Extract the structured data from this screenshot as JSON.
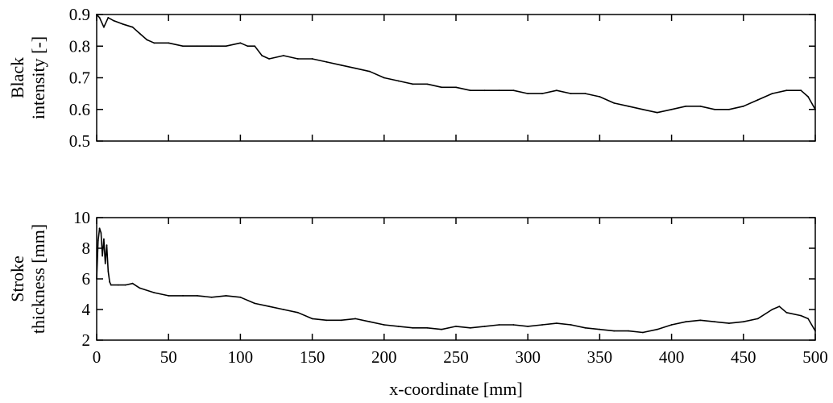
{
  "chart_data": [
    {
      "type": "line",
      "ylabel_lines": [
        "Black",
        "intensity [-]"
      ],
      "xlim": [
        0,
        500
      ],
      "ylim": [
        0.5,
        0.9
      ],
      "xticks": [
        0,
        50,
        100,
        150,
        200,
        250,
        300,
        350,
        400,
        450,
        500
      ],
      "yticks": [
        0.5,
        0.6,
        0.7,
        0.8,
        0.9
      ],
      "ytick_labels": [
        "0.5",
        "0.6",
        "0.7",
        "0.8",
        "0.9"
      ],
      "show_xtick_labels": false,
      "line_color": "#000000",
      "series": [
        {
          "x": [
            0,
            2,
            5,
            8,
            12,
            18,
            25,
            30,
            35,
            40,
            50,
            60,
            70,
            80,
            90,
            100,
            105,
            110,
            115,
            120,
            130,
            140,
            150,
            160,
            170,
            180,
            190,
            200,
            210,
            220,
            230,
            240,
            250,
            260,
            270,
            280,
            290,
            300,
            310,
            320,
            330,
            340,
            350,
            360,
            370,
            380,
            390,
            400,
            410,
            420,
            430,
            440,
            450,
            460,
            470,
            480,
            490,
            495,
            500
          ],
          "values": [
            0.9,
            0.89,
            0.86,
            0.89,
            0.88,
            0.87,
            0.86,
            0.84,
            0.82,
            0.81,
            0.81,
            0.8,
            0.8,
            0.8,
            0.8,
            0.81,
            0.8,
            0.8,
            0.77,
            0.76,
            0.77,
            0.76,
            0.76,
            0.75,
            0.74,
            0.73,
            0.72,
            0.7,
            0.69,
            0.68,
            0.68,
            0.67,
            0.67,
            0.66,
            0.66,
            0.66,
            0.66,
            0.65,
            0.65,
            0.66,
            0.65,
            0.65,
            0.64,
            0.62,
            0.61,
            0.6,
            0.59,
            0.6,
            0.61,
            0.61,
            0.6,
            0.6,
            0.61,
            0.63,
            0.65,
            0.66,
            0.66,
            0.64,
            0.6
          ]
        }
      ]
    },
    {
      "type": "line",
      "ylabel_lines": [
        "Stroke",
        "thickness [mm]"
      ],
      "xlabel": "x-coordinate [mm]",
      "xlim": [
        0,
        500
      ],
      "ylim": [
        2,
        10
      ],
      "xticks": [
        0,
        50,
        100,
        150,
        200,
        250,
        300,
        350,
        400,
        450,
        500
      ],
      "xtick_labels": [
        "0",
        "50",
        "100",
        "150",
        "200",
        "250",
        "300",
        "350",
        "400",
        "450",
        "500"
      ],
      "yticks": [
        2,
        4,
        6,
        8,
        10
      ],
      "ytick_labels": [
        "2",
        "4",
        "6",
        "8",
        "10"
      ],
      "show_xtick_labels": true,
      "line_color": "#000000",
      "series": [
        {
          "x": [
            0,
            1,
            2,
            3,
            4,
            5,
            6,
            7,
            8,
            9,
            10,
            15,
            20,
            25,
            30,
            40,
            50,
            60,
            70,
            80,
            90,
            100,
            110,
            120,
            130,
            140,
            150,
            160,
            170,
            180,
            190,
            200,
            210,
            220,
            230,
            240,
            250,
            260,
            270,
            280,
            290,
            300,
            310,
            320,
            330,
            340,
            350,
            360,
            370,
            380,
            390,
            400,
            410,
            420,
            430,
            440,
            450,
            460,
            470,
            475,
            480,
            490,
            495,
            500
          ],
          "values": [
            6.0,
            8.5,
            9.3,
            9.0,
            7.5,
            8.6,
            7.0,
            8.2,
            6.5,
            5.8,
            5.6,
            5.6,
            5.6,
            5.7,
            5.4,
            5.1,
            4.9,
            4.9,
            4.9,
            4.8,
            4.9,
            4.8,
            4.4,
            4.2,
            4.0,
            3.8,
            3.4,
            3.3,
            3.3,
            3.4,
            3.2,
            3.0,
            2.9,
            2.8,
            2.8,
            2.7,
            2.9,
            2.8,
            2.9,
            3.0,
            3.0,
            2.9,
            3.0,
            3.1,
            3.0,
            2.8,
            2.7,
            2.6,
            2.6,
            2.5,
            2.7,
            3.0,
            3.2,
            3.3,
            3.2,
            3.1,
            3.2,
            3.4,
            4.0,
            4.2,
            3.8,
            3.6,
            3.4,
            2.6
          ]
        }
      ]
    }
  ]
}
